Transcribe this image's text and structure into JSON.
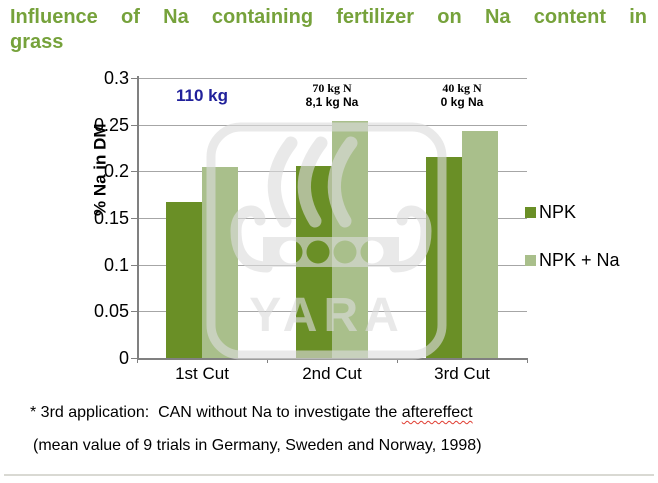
{
  "slide": {
    "title_line1": "Influence of Na containing fertilizer on Na content in",
    "title_line2": "grass",
    "footnote": {
      "line1_prefix": "* 3rd application:  CAN without Na to investigate the ",
      "line1_flagged_word": "aftereffect",
      "line2": "(mean value of 9 trials in Germany, Sweden and Norway, 1998)"
    }
  },
  "chart_data": {
    "type": "bar",
    "title": "Influence of Na containing fertilizer on Na content in grass",
    "categories": [
      "1st Cut",
      "2nd Cut",
      "3rd Cut"
    ],
    "series": [
      {
        "name": "NPK",
        "color": "#6A8F26",
        "values": [
          0.167,
          0.206,
          0.215
        ]
      },
      {
        "name": "NPK + Na",
        "color": "#A9BF8B",
        "values": [
          0.205,
          0.254,
          0.243
        ]
      }
    ],
    "xlabel": "",
    "ylabel": "% Na in DM",
    "ylim": [
      0,
      0.3
    ],
    "yticks": [
      {
        "v": 0,
        "label": "0"
      },
      {
        "v": 0.05,
        "label": "0.05"
      },
      {
        "v": 0.1,
        "label": "0.1"
      },
      {
        "v": 0.15,
        "label": "0.15"
      },
      {
        "v": 0.2,
        "label": "0.2"
      },
      {
        "v": 0.25,
        "label": "0.25"
      },
      {
        "v": 0.3,
        "label": "0.3"
      }
    ],
    "grid": true,
    "legend_position": "right",
    "annotations": [
      {
        "group": "1st Cut",
        "line1": "110 kg",
        "style": "blue-bold"
      },
      {
        "group": "2nd Cut",
        "line1": "70 kg N",
        "line2": "8,1 kg Na"
      },
      {
        "group": "3rd Cut",
        "line1": "40 kg N",
        "line2": "0 kg Na"
      }
    ]
  },
  "legend": {
    "items": [
      {
        "label": "NPK",
        "color": "#6A8F26"
      },
      {
        "label": "NPK + Na",
        "color": "#A9BF8B"
      }
    ]
  },
  "watermark": {
    "name": "yara-logo",
    "text": "YARA"
  },
  "colors": {
    "title_green": "#76A23B",
    "annotation_blue": "#21219B",
    "axis": "#808080",
    "gridline": "#A6A6A6",
    "divider": "#D9D9D3",
    "watermark": "#DCDCDC"
  }
}
